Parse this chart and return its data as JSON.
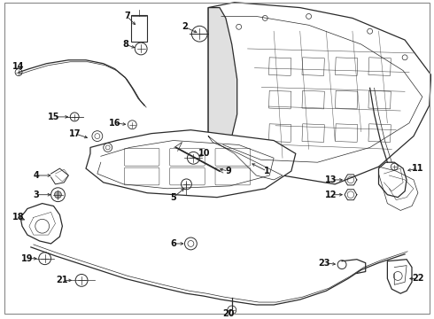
{
  "background_color": "#ffffff",
  "line_color": "#2a2a2a",
  "label_color": "#111111",
  "fig_width": 4.9,
  "fig_height": 3.6,
  "dpi": 100,
  "font_size": 7.0,
  "arrow_color": "#2a2a2a",
  "lw_main": 0.9,
  "lw_thin": 0.5,
  "lw_thick": 1.3
}
